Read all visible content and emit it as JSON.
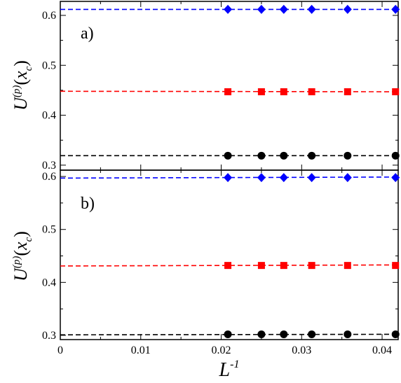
{
  "chart_data": [
    {
      "type": "scatter",
      "panel_label": "a)",
      "ylabel": {
        "base": "U",
        "sup": "(p)",
        "paren_open": "(",
        "var": "x",
        "sub": "c",
        "paren_close": ")"
      },
      "xlim": [
        0,
        0.042
      ],
      "ylim": [
        0.29,
        0.628
      ],
      "yticks": [
        0.3,
        0.4,
        0.5,
        0.6
      ],
      "ytick_labels": [
        "0.3",
        "0.4",
        "0.5",
        "0.6"
      ],
      "grid": false,
      "legend": "none",
      "series": [
        {
          "marker": "diamond",
          "color": "#0000ff",
          "x": [
            0.02083,
            0.025,
            0.02778,
            0.03125,
            0.03571,
            0.04167
          ],
          "y": [
            0.612,
            0.612,
            0.612,
            0.612,
            0.612,
            0.612
          ],
          "fit": [
            0.612,
            0.612
          ]
        },
        {
          "marker": "square",
          "color": "#ff0000",
          "x": [
            0.02083,
            0.025,
            0.02778,
            0.03125,
            0.03571,
            0.04167
          ],
          "y": [
            0.447,
            0.447,
            0.447,
            0.447,
            0.447,
            0.447
          ],
          "fit": [
            0.448,
            0.447
          ]
        },
        {
          "marker": "circle",
          "color": "#000000",
          "x": [
            0.02083,
            0.025,
            0.02778,
            0.03125,
            0.03571,
            0.04167
          ],
          "y": [
            0.319,
            0.319,
            0.319,
            0.319,
            0.319,
            0.319
          ],
          "fit": [
            0.319,
            0.319
          ]
        }
      ]
    },
    {
      "type": "scatter",
      "panel_label": "b)",
      "ylabel": {
        "base": "U",
        "sup": "(p)",
        "paren_open": "(",
        "var": "x",
        "sub": "c",
        "paren_close": ")"
      },
      "xlabel": {
        "base": "L",
        "sup": "-1"
      },
      "xlim": [
        0,
        0.042
      ],
      "ylim": [
        0.292,
        0.612
      ],
      "xticks": [
        0,
        0.01,
        0.02,
        0.03,
        0.04
      ],
      "xtick_labels": [
        "0",
        "0.01",
        "0.02",
        "0.03",
        "0.04"
      ],
      "yticks": [
        0.3,
        0.4,
        0.5,
        0.6
      ],
      "ytick_labels": [
        "0.3",
        "0.4",
        "0.5",
        "0.6"
      ],
      "grid": false,
      "legend": "none",
      "series": [
        {
          "marker": "diamond",
          "color": "#0000ff",
          "x": [
            0.02083,
            0.025,
            0.02778,
            0.03125,
            0.03571,
            0.04167
          ],
          "y": [
            0.598,
            0.598,
            0.598,
            0.598,
            0.598,
            0.598
          ],
          "fit": [
            0.597,
            0.599
          ]
        },
        {
          "marker": "square",
          "color": "#ff0000",
          "x": [
            0.02083,
            0.025,
            0.02778,
            0.03125,
            0.03571,
            0.04167
          ],
          "y": [
            0.432,
            0.432,
            0.432,
            0.432,
            0.432,
            0.432
          ],
          "fit": [
            0.431,
            0.433
          ]
        },
        {
          "marker": "circle",
          "color": "#000000",
          "x": [
            0.02083,
            0.025,
            0.02778,
            0.03125,
            0.03571,
            0.04167
          ],
          "y": [
            0.302,
            0.302,
            0.302,
            0.302,
            0.302,
            0.302
          ],
          "fit": [
            0.301,
            0.302
          ]
        }
      ]
    }
  ]
}
